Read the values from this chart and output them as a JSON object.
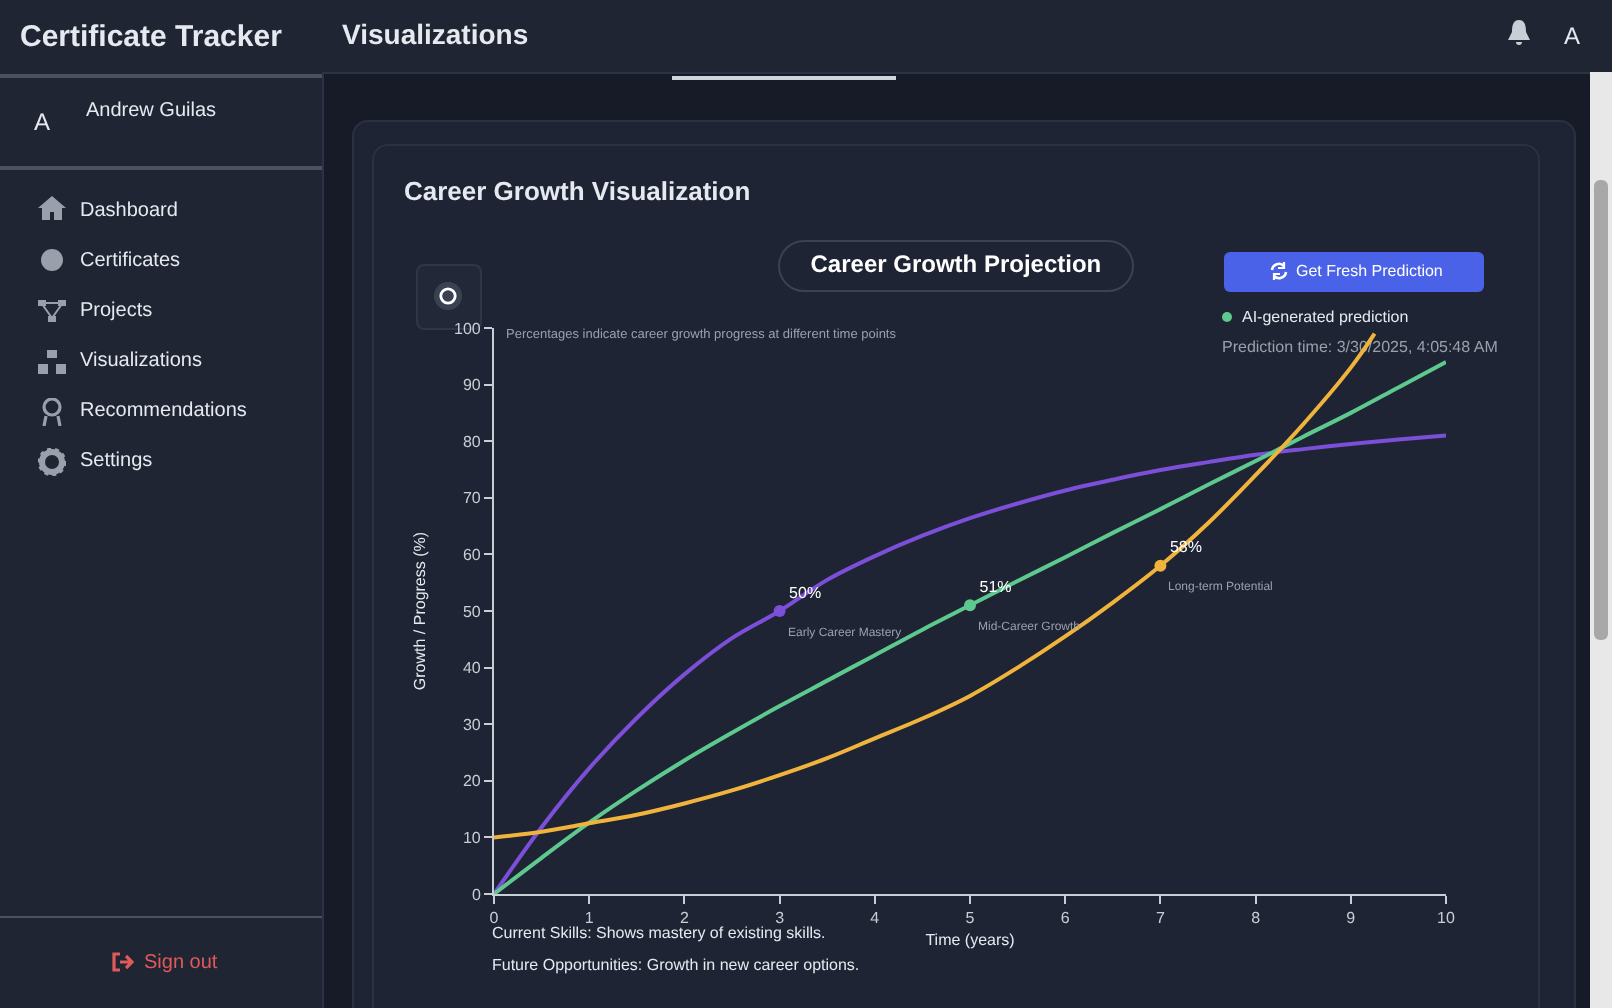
{
  "chart_data": {
    "type": "line",
    "title": "Career Growth Projection",
    "xlabel": "Time (years)",
    "ylabel": "Growth / Progress (%)",
    "xlim": [
      0,
      10
    ],
    "xticks": [
      0,
      1,
      2,
      3,
      4,
      5,
      6,
      7,
      8,
      9,
      10
    ],
    "ylim": [
      0,
      100
    ],
    "yticks": [
      0,
      10,
      20,
      30,
      40,
      50,
      60,
      70,
      80,
      90,
      100
    ],
    "grid": false,
    "legend": false,
    "series": [
      {
        "color": "#7c4fd8",
        "x": [
          0,
          0.5,
          1,
          1.5,
          2,
          2.5,
          3,
          3.5,
          4,
          4.5,
          5,
          5.5,
          6,
          6.5,
          7,
          7.5,
          8,
          8.5,
          9,
          9.5,
          10
        ],
        "values": [
          0,
          11.8,
          22.2,
          31.1,
          38.8,
          45.2,
          50,
          55.5,
          59.7,
          63.3,
          66.4,
          69,
          71.3,
          73.2,
          74.9,
          76.3,
          77.6,
          78.6,
          79.5,
          80.3,
          81
        ]
      },
      {
        "color": "#5ec98f",
        "x": [
          0,
          0.5,
          1,
          1.5,
          2,
          2.5,
          3,
          3.5,
          4,
          4.5,
          5,
          5.5,
          6,
          6.5,
          7,
          7.5,
          8,
          8.5,
          9,
          9.5,
          10
        ],
        "values": [
          0,
          6.4,
          12.6,
          18.3,
          23.6,
          28.5,
          33.2,
          37.7,
          42.2,
          46.7,
          51,
          55.3,
          59.5,
          63.8,
          68,
          72.3,
          76.5,
          80.8,
          85,
          89.5,
          94
        ]
      },
      {
        "color": "#f0b43c",
        "x": [
          0,
          0.5,
          1,
          1.5,
          2,
          2.5,
          3,
          3.5,
          4,
          4.5,
          5,
          5.5,
          6,
          6.5,
          7,
          7.5,
          8,
          8.5,
          9,
          9.25
        ],
        "values": [
          10,
          11,
          12.5,
          14,
          16,
          18.3,
          21,
          24,
          27.5,
          31,
          35,
          40,
          45.5,
          51.5,
          58,
          65.5,
          74,
          83,
          93,
          99
        ]
      },
      {
        "type": "scatter",
        "marker": "circle",
        "colors": [
          "#7c4fd8",
          "#5ec98f",
          "#f0b43c"
        ],
        "x": [
          3,
          5,
          7
        ],
        "values": [
          50,
          51,
          58
        ],
        "value_labels": [
          "50%",
          "51%",
          "58%"
        ]
      }
    ],
    "annotations": [
      "Certificate Tracker",
      "Visualizations",
      "A",
      "Andrew Guilas",
      "Dashboard",
      "Certificates",
      "Projects",
      "Visualizations",
      "Recommendations",
      "Settings",
      "Sign out",
      "A",
      "Career Growth Visualization",
      "Get Fresh Prediction",
      "AI-generated prediction",
      "Prediction time: 3/30/2025, 4:05:48 AM",
      "Percentages indicate career growth progress at different time points",
      "Current Skills: Shows mastery of existing skills.",
      "Future Opportunities: Growth in new career options.",
      {
        "text": "Early Career Mastery",
        "x": 3,
        "y": 50
      },
      {
        "text": "Mid-Career Growth",
        "x": 5,
        "y": 51
      },
      {
        "text": "Long-term Potential",
        "x": 7,
        "y": 58
      }
    ]
  }
}
